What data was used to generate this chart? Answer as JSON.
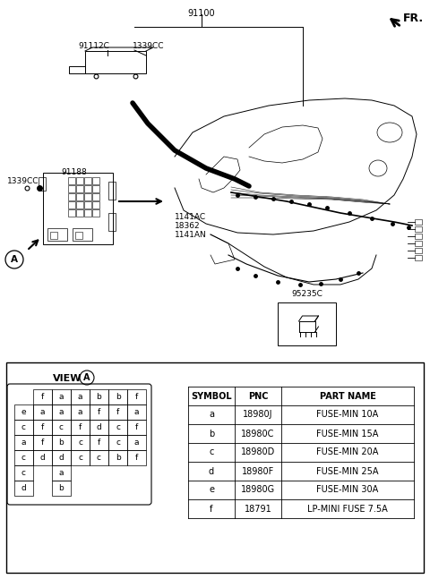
{
  "bg_color": "#ffffff",
  "fig_width": 4.8,
  "fig_height": 6.47,
  "dpi": 100,
  "labels": {
    "part_91100": "91100",
    "part_91112C": "91112C",
    "part_1339CC_top": "1339CC",
    "part_91188": "91188",
    "part_1339CC_left": "1339CC",
    "part_1141AC": "1141AC",
    "part_18362": "18362",
    "part_1141AN": "1141AN",
    "part_95235C": "95235C",
    "fr_label": "FR."
  },
  "table_headers": [
    "SYMBOL",
    "PNC",
    "PART NAME"
  ],
  "table_data": [
    [
      "a",
      "18980J",
      "FUSE-MIN 10A"
    ],
    [
      "b",
      "18980C",
      "FUSE-MIN 15A"
    ],
    [
      "c",
      "18980D",
      "FUSE-MIN 20A"
    ],
    [
      "d",
      "18980F",
      "FUSE-MIN 25A"
    ],
    [
      "e",
      "18980G",
      "FUSE-MIN 30A"
    ],
    [
      "f",
      "18791",
      "LP-MINI FUSE 7.5A"
    ]
  ],
  "fuse_grid": [
    [
      "",
      "f",
      "a",
      "a",
      "b",
      "b",
      "f"
    ],
    [
      "e",
      "a",
      "a",
      "a",
      "f",
      "f",
      "a"
    ],
    [
      "c",
      "f",
      "c",
      "f",
      "d",
      "c",
      "f"
    ],
    [
      "a",
      "f",
      "b",
      "c",
      "f",
      "c",
      "a"
    ],
    [
      "c",
      "d",
      "d",
      "c",
      "c",
      "b",
      "f"
    ],
    [
      "c",
      "",
      "a",
      "",
      "",
      "",
      ""
    ],
    [
      "d",
      "",
      "b",
      "",
      "",
      "",
      ""
    ]
  ]
}
